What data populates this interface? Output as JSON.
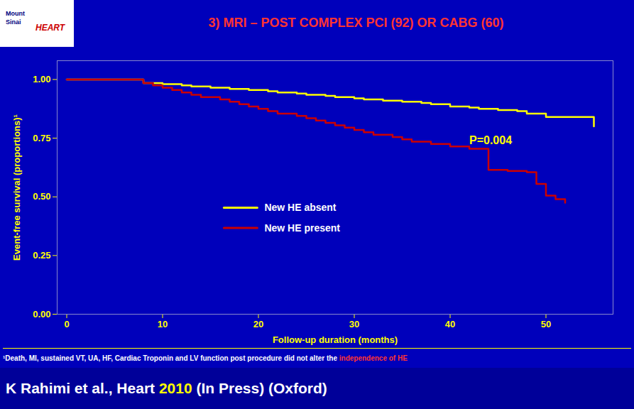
{
  "chart_data": {
    "type": "step",
    "title": "3) MRI – POST COMPLEX PCI (92) OR CABG (60)",
    "logo": [
      "Mount",
      "Sinai",
      "HEART"
    ],
    "xlabel": "Follow-up duration (months)",
    "ylabel": "Event-free survival (proportions)¹",
    "xlim": [
      -1,
      57
    ],
    "ylim": [
      0.0,
      1.08
    ],
    "xticks": [
      0,
      10,
      20,
      30,
      40,
      50
    ],
    "yticks": [
      {
        "value": 0.0,
        "label": "0.00"
      },
      {
        "value": 0.25,
        "label": "0.25"
      },
      {
        "value": 0.5,
        "label": "0.50"
      },
      {
        "value": 0.75,
        "label": "0.75"
      },
      {
        "value": 1.0,
        "label": "1.00"
      }
    ],
    "grid": false,
    "legend": "center",
    "series": [
      {
        "name": "New HE absent",
        "color": "#FFFF00",
        "x": [
          0,
          7,
          8,
          10,
          12,
          13,
          15,
          17,
          19,
          21,
          22,
          24,
          25,
          27,
          28,
          30,
          31,
          33,
          35,
          37,
          38,
          40,
          42,
          43,
          45,
          47,
          48,
          50,
          52,
          55
        ],
        "values": [
          1.0,
          1.0,
          0.985,
          0.98,
          0.975,
          0.97,
          0.965,
          0.96,
          0.955,
          0.95,
          0.945,
          0.94,
          0.935,
          0.93,
          0.925,
          0.92,
          0.915,
          0.91,
          0.905,
          0.9,
          0.895,
          0.885,
          0.88,
          0.875,
          0.87,
          0.865,
          0.855,
          0.84,
          0.84,
          0.8
        ]
      },
      {
        "name": "New HE present",
        "color": "#CC0000",
        "x": [
          0,
          7,
          8,
          9,
          10,
          11,
          12,
          13,
          14,
          16,
          17,
          18,
          19,
          20,
          21,
          22,
          24,
          25,
          26,
          27,
          28,
          29,
          30,
          31,
          32,
          34,
          35,
          36,
          38,
          40,
          42,
          44,
          46,
          48,
          49,
          50,
          51,
          52
        ],
        "values": [
          1.0,
          1.0,
          0.985,
          0.975,
          0.965,
          0.955,
          0.945,
          0.935,
          0.925,
          0.915,
          0.905,
          0.895,
          0.885,
          0.875,
          0.865,
          0.855,
          0.845,
          0.835,
          0.825,
          0.815,
          0.805,
          0.795,
          0.785,
          0.775,
          0.765,
          0.755,
          0.745,
          0.735,
          0.725,
          0.715,
          0.705,
          0.615,
          0.61,
          0.605,
          0.555,
          0.505,
          0.49,
          0.475
        ]
      }
    ],
    "annotations": [
      {
        "text": "P=0.004",
        "x": 42,
        "y": 0.7
      }
    ],
    "footnote": [
      "¹Death, MI, sustained VT, UA, HF, Cardiac Troponin and LV function post procedure did not alter the ",
      "independence of HE"
    ],
    "source": [
      "K Rahimi et al., Heart ",
      "2010",
      " (In Press) (Oxford)"
    ]
  }
}
